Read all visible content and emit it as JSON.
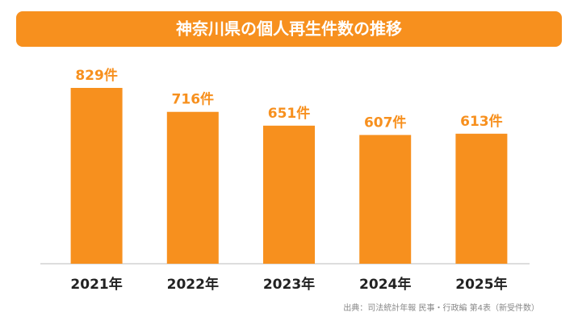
{
  "chart_data": {
    "type": "bar",
    "title": "神奈川県の個人再生件数の推移",
    "categories": [
      "2021年",
      "2022年",
      "2023年",
      "2024年",
      "2025年"
    ],
    "values": [
      829,
      716,
      651,
      607,
      613
    ],
    "value_labels": [
      "829件",
      "716件",
      "651件",
      "607件",
      "613件"
    ],
    "color": "#f7901e",
    "source": "出典：司法統計年報 民事・行政編 第4表（新受件数）"
  }
}
